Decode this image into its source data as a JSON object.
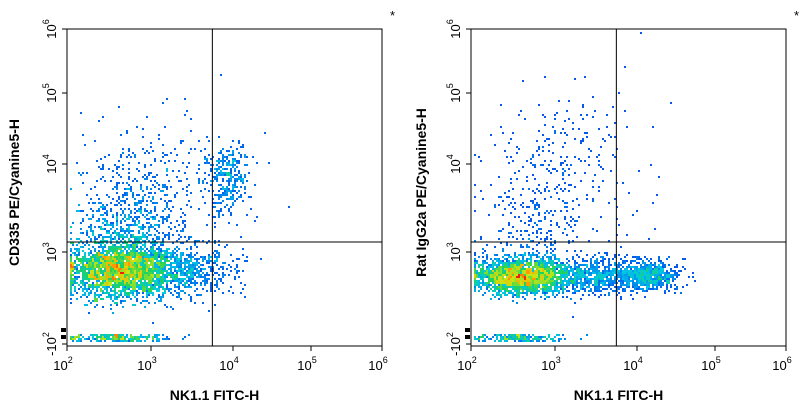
{
  "chart_data": [
    {
      "type": "scatter",
      "style": "density-dot-plot",
      "xlabel": "NK1.1 FITC-H",
      "ylabel": "CD335 PE/Cyanine5-H",
      "x_scale": "biexponential",
      "y_scale": "biexponential",
      "x_ticks": [
        {
          "value": 100,
          "base": "10",
          "exp": "2"
        },
        {
          "value": 1000,
          "base": "10",
          "exp": "3"
        },
        {
          "value": 10000,
          "base": "10",
          "exp": "4"
        },
        {
          "value": 100000,
          "base": "10",
          "exp": "5"
        },
        {
          "value": 1000000,
          "base": "10",
          "exp": "6"
        }
      ],
      "y_ticks": [
        {
          "value": -100,
          "base": "-10",
          "exp": "2"
        },
        {
          "value": 1000,
          "base": "10",
          "exp": "3"
        },
        {
          "value": 10000,
          "base": "10",
          "exp": "4"
        },
        {
          "value": 100000,
          "base": "10",
          "exp": "5"
        },
        {
          "value": 1000000,
          "base": "10",
          "exp": "6"
        }
      ],
      "quadrant_gate": {
        "x": 5600,
        "y": 1300
      },
      "corner_mark": "*",
      "populations": [
        {
          "name": "main",
          "x": 400,
          "y": 450,
          "sx": 0.3,
          "sy": 0.3,
          "n": 5200
        },
        {
          "name": "x_tail",
          "x": 2000,
          "y": 450,
          "sx": 0.35,
          "sy": 0.28,
          "n": 800
        },
        {
          "name": "y_tail",
          "x": 600,
          "y": 2000,
          "sx": 0.3,
          "sy": 0.45,
          "n": 600
        },
        {
          "name": "cd335_nk11_positive",
          "x": 8000,
          "y": 7000,
          "sx": 0.14,
          "sy": 0.2,
          "n": 320
        },
        {
          "name": "scatter",
          "x": 1200,
          "y": 8000,
          "sx": 0.55,
          "sy": 0.55,
          "n": 150
        }
      ]
    },
    {
      "type": "scatter",
      "style": "density-dot-plot",
      "xlabel": "NK1.1 FITC-H",
      "ylabel": "Rat IgG2a PE/Cyanine5-H",
      "x_scale": "biexponential",
      "y_scale": "biexponential",
      "x_ticks": [
        {
          "value": 100,
          "base": "10",
          "exp": "2"
        },
        {
          "value": 1000,
          "base": "10",
          "exp": "3"
        },
        {
          "value": 10000,
          "base": "10",
          "exp": "4"
        },
        {
          "value": 100000,
          "base": "10",
          "exp": "5"
        },
        {
          "value": 1000000,
          "base": "10",
          "exp": "6"
        }
      ],
      "y_ticks": [
        {
          "value": -100,
          "base": "-10",
          "exp": "2"
        },
        {
          "value": 1000,
          "base": "10",
          "exp": "3"
        },
        {
          "value": 10000,
          "base": "10",
          "exp": "4"
        },
        {
          "value": 100000,
          "base": "10",
          "exp": "5"
        },
        {
          "value": 1000000,
          "base": "10",
          "exp": "6"
        }
      ],
      "quadrant_gate": {
        "x": 5600,
        "y": 1300
      },
      "corner_mark": "*",
      "populations": [
        {
          "name": "main",
          "x": 380,
          "y": 320,
          "sx": 0.28,
          "sy": 0.18,
          "n": 5200
        },
        {
          "name": "x_tail",
          "x": 3000,
          "y": 330,
          "sx": 0.45,
          "sy": 0.18,
          "n": 1100
        },
        {
          "name": "nk11_positive",
          "x": 14000,
          "y": 350,
          "sx": 0.18,
          "sy": 0.15,
          "n": 500
        },
        {
          "name": "y_tail",
          "x": 700,
          "y": 2500,
          "sx": 0.35,
          "sy": 0.45,
          "n": 350
        },
        {
          "name": "scatter",
          "x": 1500,
          "y": 20000,
          "sx": 0.45,
          "sy": 0.45,
          "n": 140
        }
      ]
    }
  ]
}
